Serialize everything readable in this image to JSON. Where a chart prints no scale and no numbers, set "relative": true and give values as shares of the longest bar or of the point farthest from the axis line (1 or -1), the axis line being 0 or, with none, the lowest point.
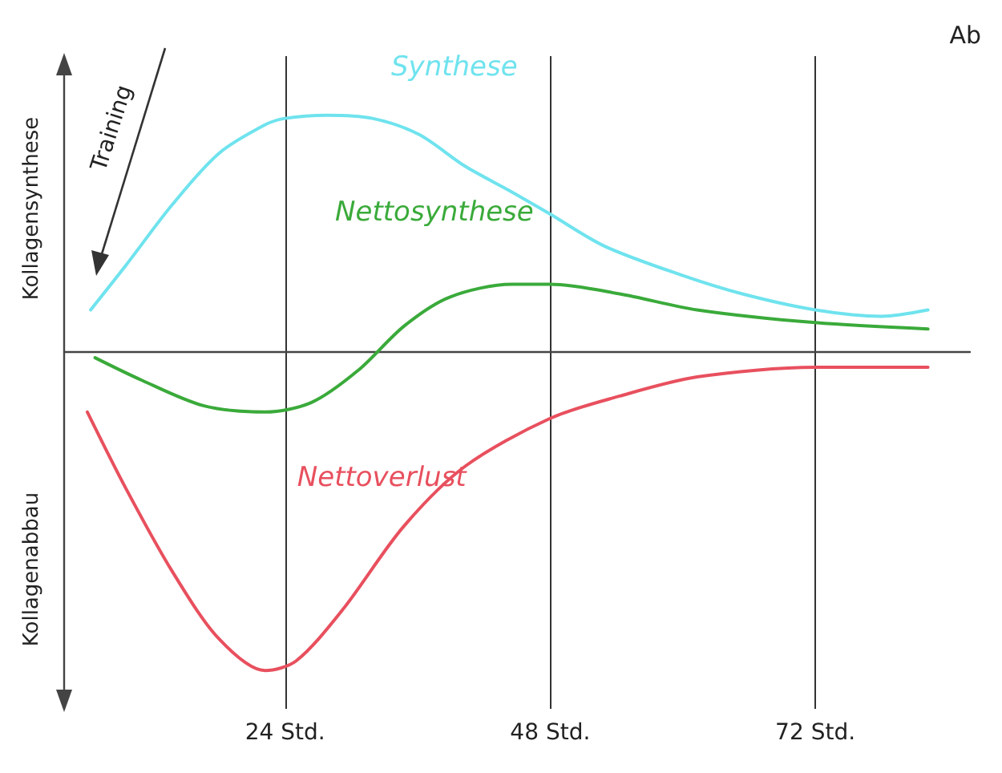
{
  "chart_data": {
    "type": "line",
    "relative": true,
    "annotations": [
      "Ab",
      "Training",
      "Kollagensynthese",
      "Kollagenabbau"
    ],
    "xlim": [
      4,
      86
    ],
    "xticks": [
      {
        "value": 24,
        "label": "24 Std."
      },
      {
        "value": 48,
        "label": "48 Std."
      },
      {
        "value": 72,
        "label": "72 Std."
      }
    ],
    "grid": "x",
    "legend": false,
    "marker": "none",
    "line_style": "solid",
    "series": [
      {
        "name": "Synthese",
        "color": "#6fe3ee",
        "x": [
          6.4,
          9.6,
          13.8,
          18.0,
          22.2,
          24,
          27.8,
          31.9,
          36.1,
          40.3,
          44.5,
          48,
          52.9,
          59.8,
          65.4,
          72,
          78,
          82.2
        ],
        "values": [
          0.13,
          0.27,
          0.46,
          0.62,
          0.71,
          0.73,
          0.74,
          0.73,
          0.68,
          0.58,
          0.5,
          0.43,
          0.33,
          0.24,
          0.18,
          0.13,
          0.11,
          0.13
        ]
      },
      {
        "name": "Nettosynthese",
        "color": "#3aaa3a",
        "x": [
          6.8,
          11.0,
          16.6,
          22.2,
          26.4,
          30.6,
          34.8,
          38.9,
          44.5,
          48,
          54.3,
          61.3,
          72,
          82.2
        ],
        "values": [
          -0.02,
          -0.09,
          -0.17,
          -0.19,
          -0.16,
          -0.06,
          0.08,
          0.17,
          0.21,
          0.21,
          0.18,
          0.13,
          0.09,
          0.07
        ]
      },
      {
        "name": "Nettoverlust",
        "color": "#e8505e",
        "x": [
          6.1,
          9.6,
          13.8,
          18.0,
          22.2,
          25.0,
          29.2,
          34.7,
          40.3,
          48,
          54.3,
          61.3,
          72,
          82.2
        ],
        "values": [
          -0.19,
          -0.43,
          -0.69,
          -0.9,
          -1,
          -0.97,
          -0.81,
          -0.55,
          -0.36,
          -0.21,
          -0.14,
          -0.08,
          -0.05,
          -0.05
        ]
      }
    ]
  }
}
